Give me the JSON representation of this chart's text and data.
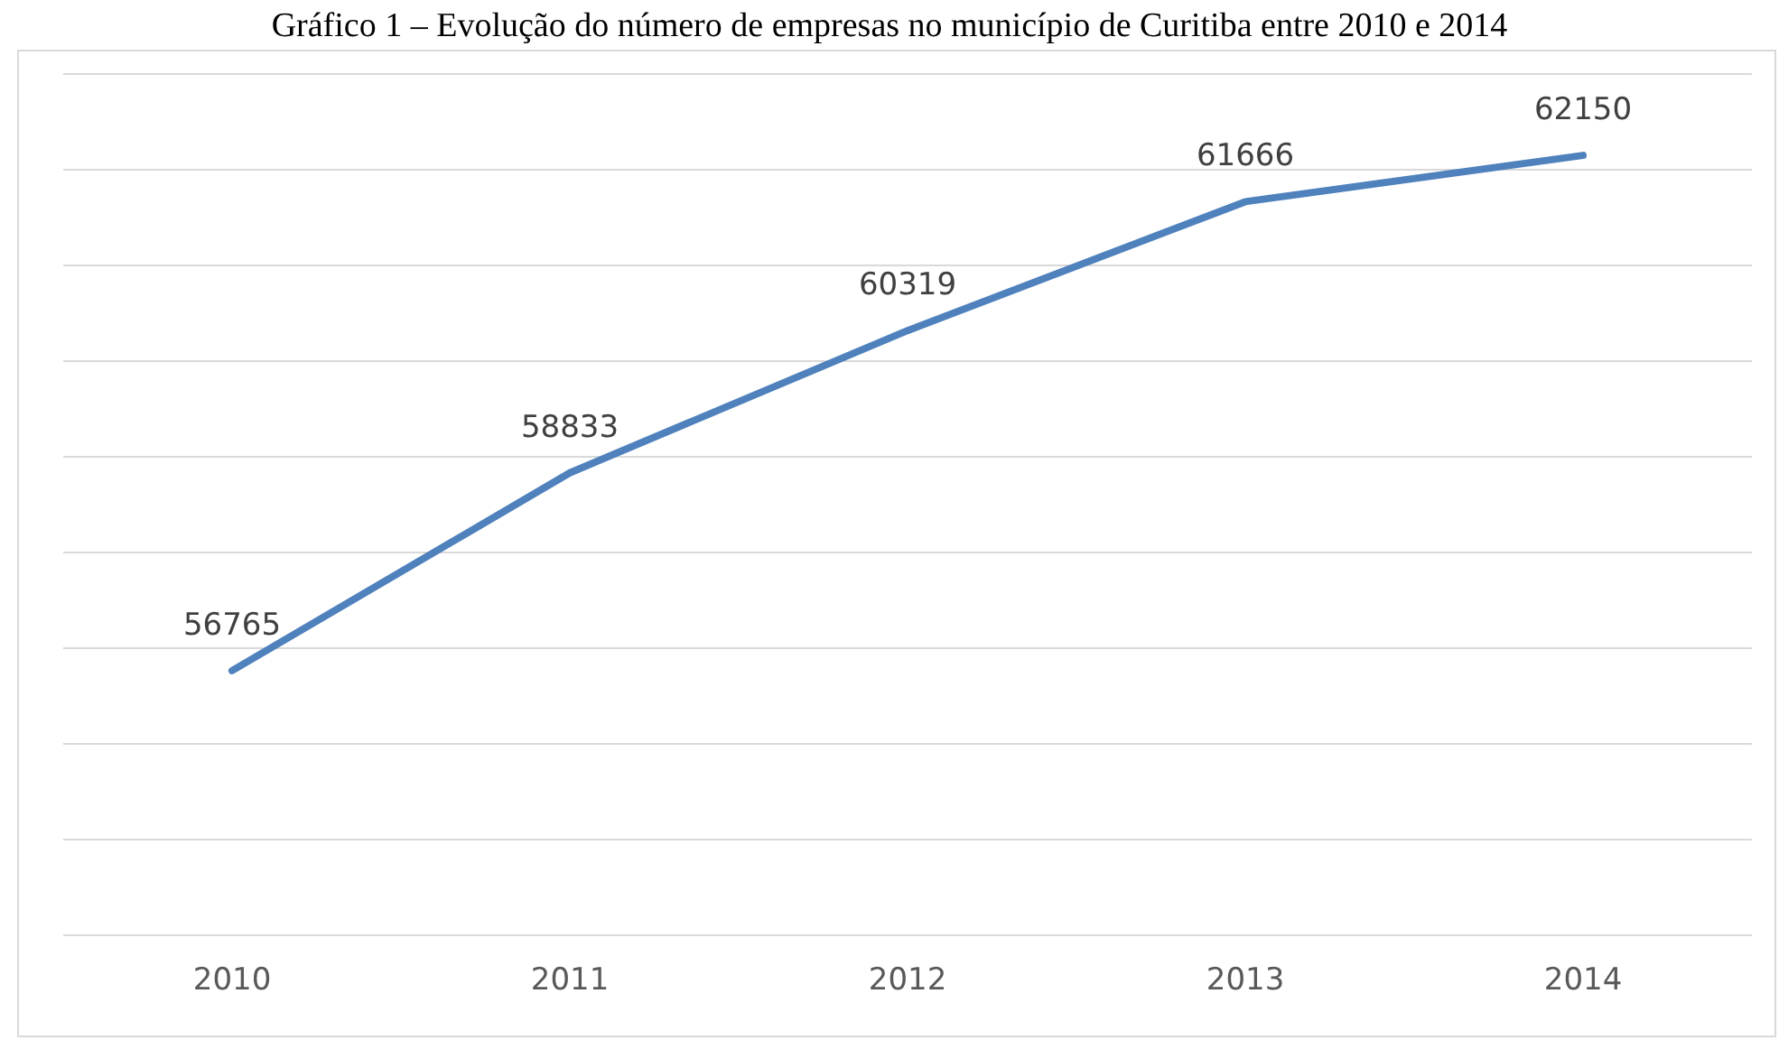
{
  "chart_data": {
    "type": "line",
    "title": "Gráfico 1 – Evolução do número de empresas no município de Curitiba entre 2010 e 2014",
    "categories": [
      "2010",
      "2011",
      "2012",
      "2013",
      "2014"
    ],
    "series": [
      {
        "color": "#4f81bd",
        "values": [
          56765,
          58833,
          60319,
          61666,
          62150
        ]
      }
    ],
    "ylim": [
      54000,
      63000
    ],
    "yticks": [
      {
        "value": 54000,
        "label": null
      },
      {
        "value": 55000,
        "label": null
      },
      {
        "value": 56000,
        "label": null
      },
      {
        "value": 57000,
        "label": null
      },
      {
        "value": 58000,
        "label": null
      },
      {
        "value": 59000,
        "label": null
      },
      {
        "value": 60000,
        "label": null
      },
      {
        "value": 61000,
        "label": null
      },
      {
        "value": 62000,
        "label": null
      },
      {
        "value": 63000,
        "label": null
      }
    ],
    "tick_labels": "x",
    "grid": "y",
    "data_labels": true,
    "marker": "none",
    "line_style": "solid"
  }
}
